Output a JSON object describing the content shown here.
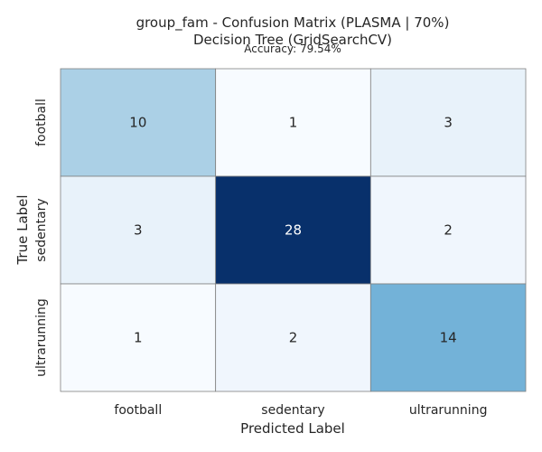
{
  "chart_data": {
    "type": "heatmap",
    "title_line1": "group_fam - Confusion Matrix (PLASMA | 70%)",
    "title_line2": "Decision Tree (GridSearchCV)",
    "subtitle": "Accuracy: 79.54%",
    "xlabel": "Predicted Label",
    "ylabel": "True Label",
    "x_categories": [
      "football",
      "sedentary",
      "ultrarunning"
    ],
    "y_categories": [
      "football",
      "sedentary",
      "ultrarunning"
    ],
    "matrix": [
      [
        10,
        1,
        3
      ],
      [
        3,
        28,
        2
      ],
      [
        1,
        2,
        14
      ]
    ],
    "colormap": "Blues",
    "colorbar": false,
    "grid_line_color": "#808080"
  }
}
